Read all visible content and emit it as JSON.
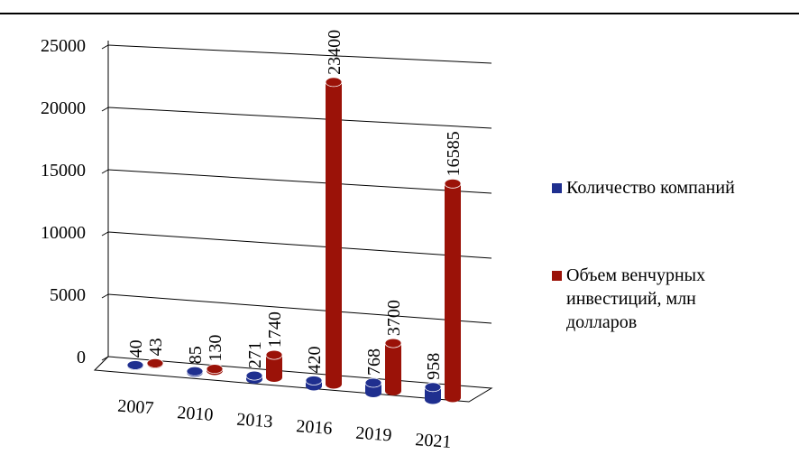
{
  "chart_data": {
    "type": "bar",
    "categories": [
      "2007",
      "2010",
      "2013",
      "2016",
      "2019",
      "2021"
    ],
    "series": [
      {
        "name": "Количество компаний",
        "color": "#1f2f8f",
        "values": [
          40,
          85,
          271,
          420,
          768,
          958
        ]
      },
      {
        "name": "Объем венчурных инвестиций, млн долларов",
        "color": "#9b1208",
        "values": [
          43,
          130,
          1740,
          23400,
          3700,
          16585
        ]
      }
    ],
    "ylim": [
      0,
      25000
    ],
    "yticks": [
      0,
      5000,
      10000,
      15000,
      20000,
      25000
    ],
    "grid": true,
    "legend": "right"
  }
}
